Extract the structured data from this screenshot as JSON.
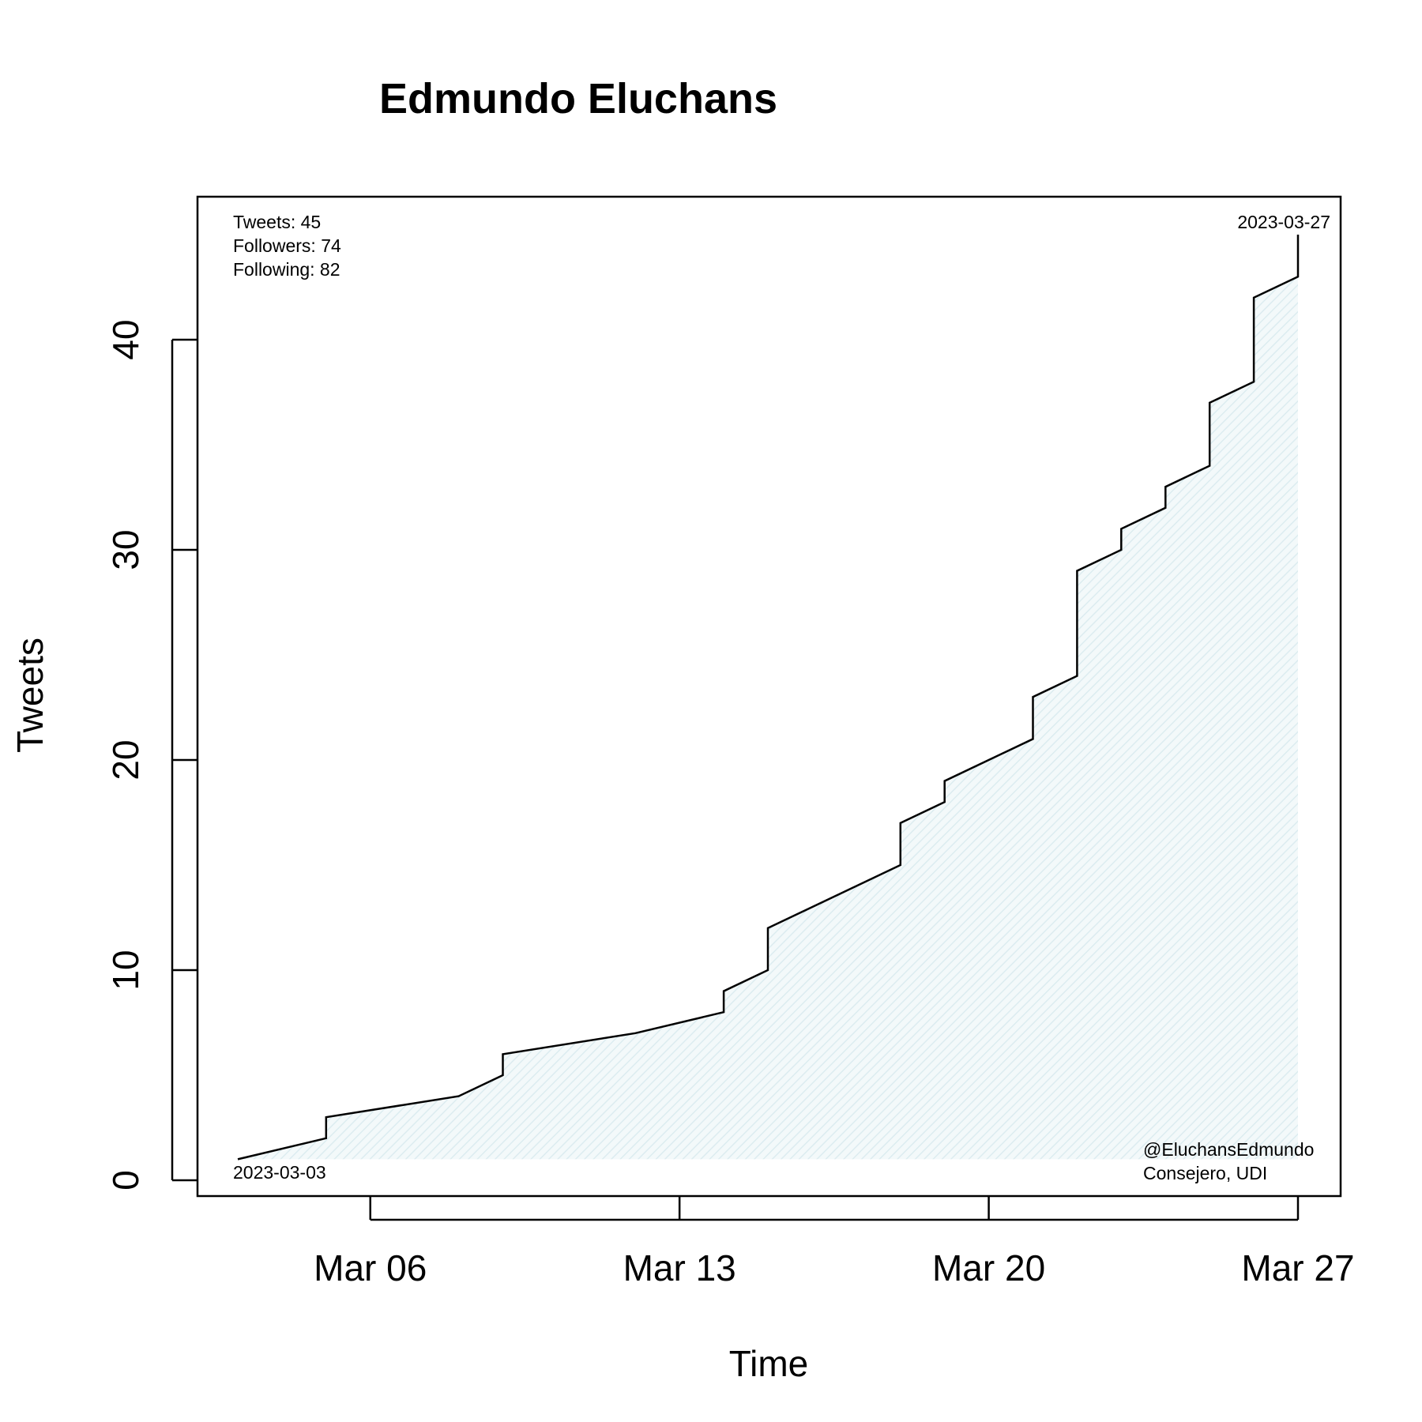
{
  "chart_data": {
    "type": "line",
    "title": "Edmundo Eluchans",
    "xlabel": "Time",
    "ylabel": "Tweets",
    "ylim": [
      0,
      45
    ],
    "xlim": [
      "2023-03-02",
      "2023-03-28"
    ],
    "yticks": [
      0,
      10,
      20,
      30,
      40
    ],
    "xticks": [
      {
        "date": "2023-03-06",
        "label": "Mar 06"
      },
      {
        "date": "2023-03-13",
        "label": "Mar 13"
      },
      {
        "date": "2023-03-20",
        "label": "Mar 20"
      },
      {
        "date": "2023-03-27",
        "label": "Mar 27"
      }
    ],
    "grid": false,
    "fill_color": "#e6f2f5",
    "series": [
      {
        "x": [
          "2023-03-03",
          "2023-03-05",
          "2023-03-05",
          "2023-03-08",
          "2023-03-09",
          "2023-03-09",
          "2023-03-12",
          "2023-03-14",
          "2023-03-14",
          "2023-03-15",
          "2023-03-15",
          "2023-03-18",
          "2023-03-18",
          "2023-03-19",
          "2023-03-19",
          "2023-03-21",
          "2023-03-21",
          "2023-03-22",
          "2023-03-22",
          "2023-03-23",
          "2023-03-23",
          "2023-03-24",
          "2023-03-24",
          "2023-03-25",
          "2023-03-25",
          "2023-03-26",
          "2023-03-26",
          "2023-03-27",
          "2023-03-27"
        ],
        "y": [
          1,
          2,
          3,
          4,
          5,
          6,
          7,
          8,
          9,
          10,
          12,
          15,
          17,
          18,
          19,
          21,
          23,
          24,
          29,
          30,
          31,
          32,
          33,
          34,
          37,
          38,
          42,
          43,
          45
        ]
      }
    ],
    "annotations": {
      "stats": [
        "Tweets: 45",
        "Followers: 74",
        "Following: 82"
      ],
      "start_date": "2023-03-03",
      "end_date": "2023-03-27",
      "handle": "@EluchansEdmundo",
      "role": "Consejero, UDI"
    }
  }
}
